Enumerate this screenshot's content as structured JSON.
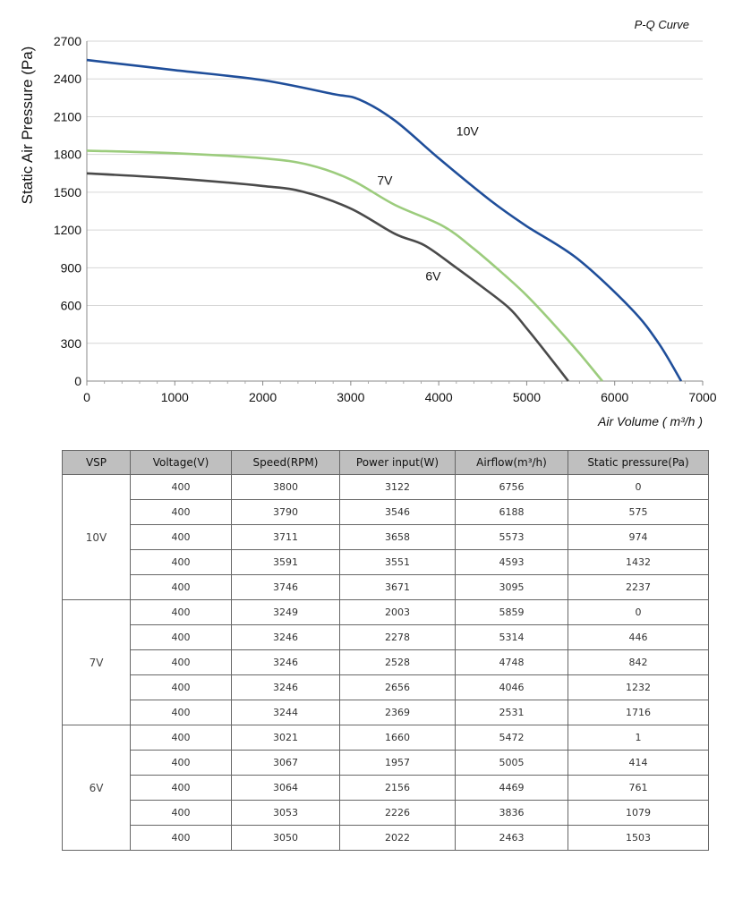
{
  "chart_data": {
    "type": "line",
    "title": "P-Q Curve",
    "xlabel": "Air Volume ( m³/h )",
    "ylabel": "Static Air Pressure  (Pa)",
    "xlim": [
      0,
      7000
    ],
    "ylim": [
      0,
      2700
    ],
    "xticks": [
      0,
      1000,
      2000,
      3000,
      4000,
      5000,
      6000,
      7000
    ],
    "yticks": [
      0,
      300,
      600,
      900,
      1200,
      1500,
      1800,
      2100,
      2400,
      2700
    ],
    "grid": "horizontal",
    "series": [
      {
        "name": "10V",
        "color": "#1f4e9a",
        "points": [
          [
            0,
            2550
          ],
          [
            1000,
            2470
          ],
          [
            2000,
            2390
          ],
          [
            2800,
            2280
          ],
          [
            3095,
            2237
          ],
          [
            3500,
            2070
          ],
          [
            4000,
            1770
          ],
          [
            4593,
            1432
          ],
          [
            5000,
            1230
          ],
          [
            5573,
            974
          ],
          [
            6188,
            575
          ],
          [
            6500,
            300
          ],
          [
            6756,
            0
          ]
        ]
      },
      {
        "name": "7V",
        "color": "#9ccc7d",
        "points": [
          [
            0,
            1830
          ],
          [
            1000,
            1810
          ],
          [
            2000,
            1770
          ],
          [
            2531,
            1716
          ],
          [
            3000,
            1600
          ],
          [
            3500,
            1400
          ],
          [
            4046,
            1232
          ],
          [
            4400,
            1050
          ],
          [
            4748,
            842
          ],
          [
            5000,
            680
          ],
          [
            5314,
            446
          ],
          [
            5600,
            220
          ],
          [
            5859,
            0
          ]
        ]
      },
      {
        "name": "6V",
        "color": "#4a4a4a",
        "points": [
          [
            0,
            1650
          ],
          [
            1000,
            1610
          ],
          [
            2000,
            1550
          ],
          [
            2463,
            1503
          ],
          [
            3000,
            1370
          ],
          [
            3500,
            1170
          ],
          [
            3836,
            1079
          ],
          [
            4200,
            900
          ],
          [
            4469,
            761
          ],
          [
            4800,
            580
          ],
          [
            5005,
            414
          ],
          [
            5250,
            200
          ],
          [
            5472,
            1
          ]
        ]
      }
    ]
  },
  "table": {
    "headers": [
      "VSP",
      "Voltage(V)",
      "Speed(RPM)",
      "Power input(W)",
      "Airflow(m³/h)",
      "Static pressure(Pa)"
    ],
    "groups": [
      {
        "vsp": "10V",
        "rows": [
          [
            "400",
            "3800",
            "3122",
            "6756",
            "0"
          ],
          [
            "400",
            "3790",
            "3546",
            "6188",
            "575"
          ],
          [
            "400",
            "3711",
            "3658",
            "5573",
            "974"
          ],
          [
            "400",
            "3591",
            "3551",
            "4593",
            "1432"
          ],
          [
            "400",
            "3746",
            "3671",
            "3095",
            "2237"
          ]
        ]
      },
      {
        "vsp": "7V",
        "rows": [
          [
            "400",
            "3249",
            "2003",
            "5859",
            "0"
          ],
          [
            "400",
            "3246",
            "2278",
            "5314",
            "446"
          ],
          [
            "400",
            "3246",
            "2528",
            "4748",
            "842"
          ],
          [
            "400",
            "3246",
            "2656",
            "4046",
            "1232"
          ],
          [
            "400",
            "3244",
            "2369",
            "2531",
            "1716"
          ]
        ]
      },
      {
        "vsp": "6V",
        "rows": [
          [
            "400",
            "3021",
            "1660",
            "5472",
            "1"
          ],
          [
            "400",
            "3067",
            "1957",
            "5005",
            "414"
          ],
          [
            "400",
            "3064",
            "2156",
            "4469",
            "761"
          ],
          [
            "400",
            "3053",
            "2226",
            "3836",
            "1079"
          ],
          [
            "400",
            "3050",
            "2022",
            "2463",
            "1503"
          ]
        ]
      }
    ]
  }
}
